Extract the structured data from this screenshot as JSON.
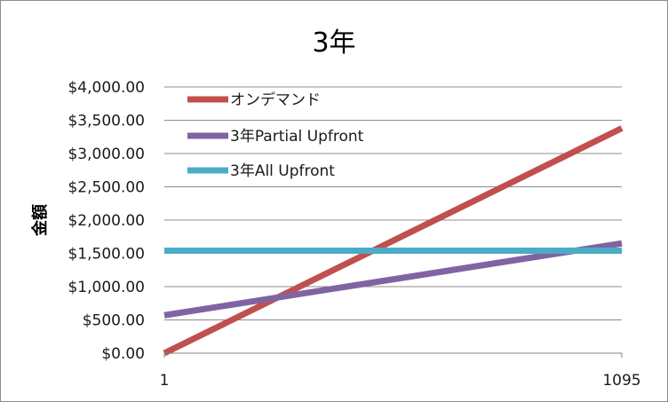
{
  "chart_data": {
    "type": "line",
    "title": "3年",
    "xlabel": "",
    "ylabel": "金額",
    "x_tick_labels": [
      "1",
      "1095"
    ],
    "xlim": [
      1,
      1095
    ],
    "ylim": [
      0,
      4000
    ],
    "y_tick_labels": [
      "$0.00",
      "$500.00",
      "$1,000.00",
      "$1,500.00",
      "$2,000.00",
      "$2,500.00",
      "$3,000.00",
      "$3,500.00",
      "$4,000.00"
    ],
    "y_ticks": [
      0,
      500,
      1000,
      1500,
      2000,
      2500,
      3000,
      3500,
      4000
    ],
    "grid": true,
    "legend_position": "top-left",
    "series": [
      {
        "name": "オンデマンド",
        "color": "#c0504d",
        "x": [
          1,
          1095
        ],
        "y": [
          0,
          3380
        ]
      },
      {
        "name": "3年Partial Upfront",
        "color": "#8064a2",
        "x": [
          1,
          1095
        ],
        "y": [
          570,
          1650
        ]
      },
      {
        "name": "3年All Upfront",
        "color": "#4bacc6",
        "x": [
          1,
          1095
        ],
        "y": [
          1540,
          1540
        ]
      }
    ]
  }
}
